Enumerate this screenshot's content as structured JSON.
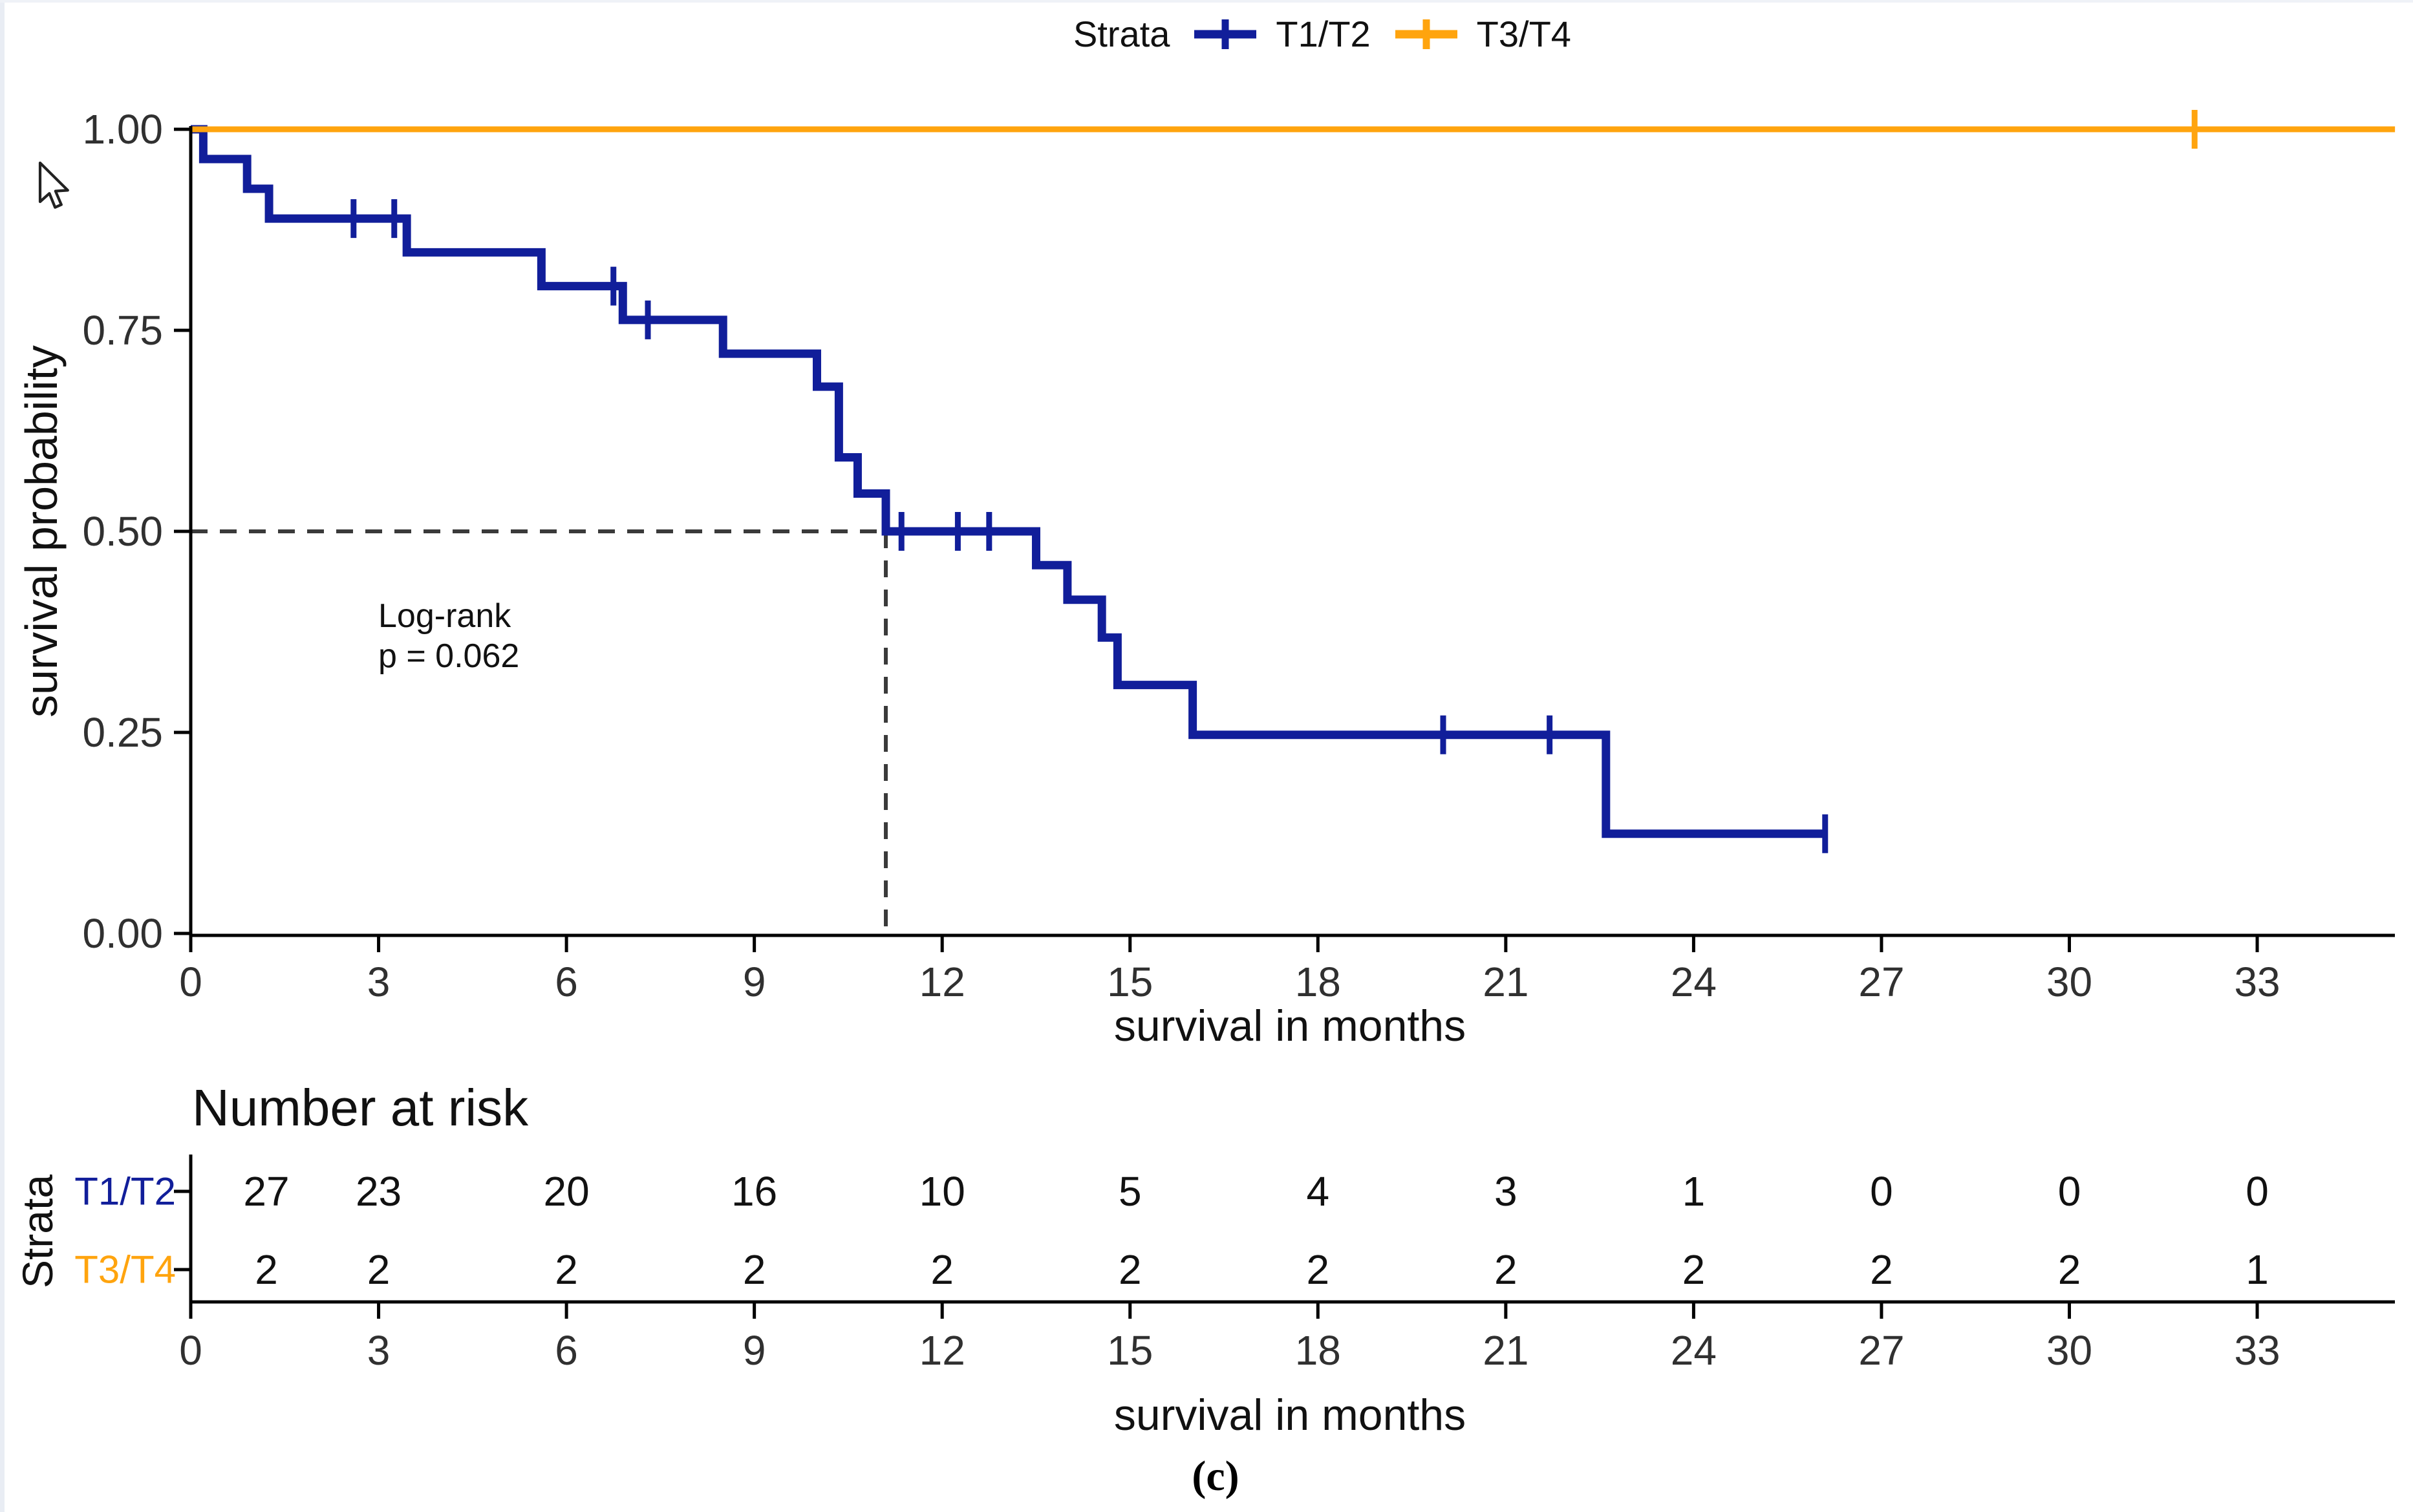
{
  "figure": {
    "legend": {
      "title": "Strata",
      "items": [
        {
          "label": "T1/T2",
          "color": "#111e9a"
        },
        {
          "label": "T3/T4",
          "color": "#ffa40e"
        }
      ]
    },
    "annotation": {
      "line1": "Log-rank",
      "line2": "p = 0.062"
    },
    "y_axis": {
      "label": "survival probability",
      "tick_labels": [
        "1.00",
        "0.75",
        "0.50",
        "0.25",
        "0.00"
      ]
    },
    "x_axis": {
      "label": "survival in months",
      "tick_labels": [
        "0",
        "3",
        "6",
        "9",
        "12",
        "15",
        "18",
        "21",
        "24",
        "27",
        "30",
        "33"
      ]
    },
    "risk_table": {
      "title": "Number at risk",
      "side_label": "Strata",
      "x_label": "survival in months",
      "rows": [
        {
          "label": "T1/T2",
          "color": "#111e9a",
          "values": [
            "27",
            "23",
            "20",
            "16",
            "10",
            "5",
            "4",
            "3",
            "1",
            "0",
            "0",
            "0"
          ]
        },
        {
          "label": "T3/T4",
          "color": "#ffa40e",
          "values": [
            "2",
            "2",
            "2",
            "2",
            "2",
            "2",
            "2",
            "2",
            "2",
            "2",
            "2",
            "1"
          ]
        }
      ]
    },
    "caption": "(c)"
  },
  "chart_data": {
    "type": "line",
    "subtype": "kaplan-meier-step",
    "title": "",
    "xlabel": "survival in months",
    "ylabel": "survival probability",
    "xlim": [
      0,
      35.2
    ],
    "ylim": [
      0,
      1
    ],
    "x_ticks": [
      0,
      3,
      6,
      9,
      12,
      15,
      18,
      21,
      24,
      27,
      30,
      33
    ],
    "y_ticks": [
      1.0,
      0.75,
      0.5,
      0.25,
      0.0
    ],
    "grid": false,
    "legend_position": "top",
    "logrank_p": "0.062",
    "median_line": {
      "time": 11.1,
      "probability": 0.5
    },
    "series": [
      {
        "name": "T1/T2",
        "color": "#111e9a",
        "steps": [
          [
            0,
            1.0
          ],
          [
            0.2,
            0.963
          ],
          [
            0.9,
            0.926
          ],
          [
            1.25,
            0.889
          ],
          [
            3.45,
            0.847
          ],
          [
            5.6,
            0.805
          ],
          [
            6.9,
            0.763
          ],
          [
            8.5,
            0.721
          ],
          [
            10.0,
            0.68
          ],
          [
            10.35,
            0.592
          ],
          [
            10.65,
            0.547
          ],
          [
            11.1,
            0.5
          ],
          [
            13.5,
            0.458
          ],
          [
            14.0,
            0.415
          ],
          [
            14.55,
            0.368
          ],
          [
            14.8,
            0.309
          ],
          [
            16.0,
            0.247
          ],
          [
            22.6,
            0.124
          ]
        ],
        "end_time": 26.1,
        "censors": [
          [
            2.6,
            0.889
          ],
          [
            3.25,
            0.889
          ],
          [
            6.75,
            0.805
          ],
          [
            7.3,
            0.763
          ],
          [
            11.35,
            0.5
          ],
          [
            12.25,
            0.5
          ],
          [
            12.75,
            0.5
          ],
          [
            20.0,
            0.247
          ],
          [
            21.7,
            0.247
          ],
          [
            26.1,
            0.124
          ]
        ]
      },
      {
        "name": "T3/T4",
        "color": "#ffa40e",
        "steps": [
          [
            0,
            1.0
          ]
        ],
        "end_time": 35.2,
        "censors": [
          [
            32.0,
            1.0
          ]
        ]
      }
    ],
    "number_at_risk": {
      "times": [
        0,
        3,
        6,
        9,
        12,
        15,
        18,
        21,
        24,
        27,
        30,
        33
      ],
      "T1/T2": [
        27,
        23,
        20,
        16,
        10,
        5,
        4,
        3,
        1,
        0,
        0,
        0
      ],
      "T3/T4": [
        2,
        2,
        2,
        2,
        2,
        2,
        2,
        2,
        2,
        2,
        2,
        1
      ]
    }
  }
}
